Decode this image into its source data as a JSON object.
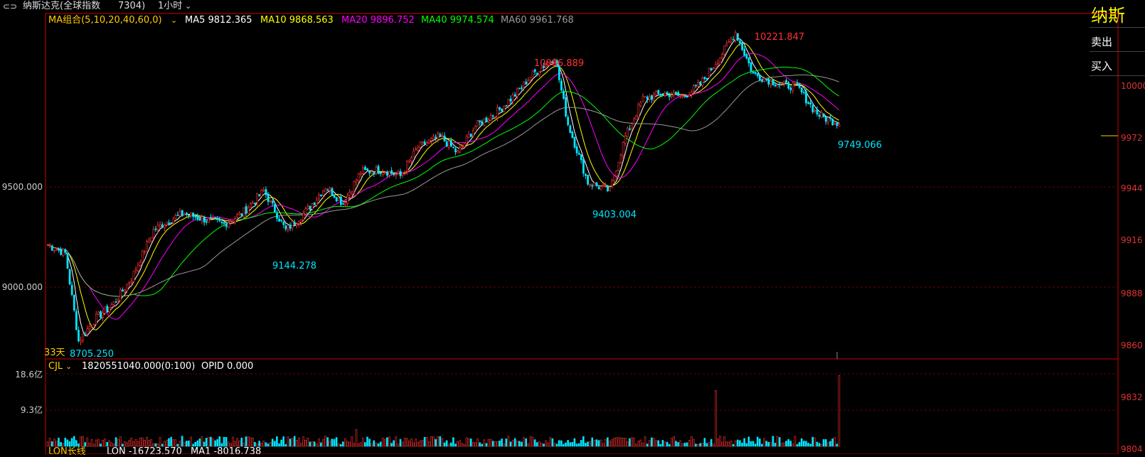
{
  "titlebar": {
    "link_icon": "link-icon",
    "name": "纳斯达克(全球指数",
    "code": "7304)",
    "period": "1小时",
    "period_arrow": "chevron-down-icon"
  },
  "ma_header": {
    "label": "MA组合(5,10,20,40,60,0)",
    "arrow": "chevron-down-icon",
    "ma5": "MA5 9812.365",
    "ma10": "MA10 9868.563",
    "ma20": "MA20 9896.752",
    "ma40": "MA40 9974.574",
    "ma60": "MA60 9961.768"
  },
  "vol_header": {
    "label": "CJL",
    "arrow": "chevron-down-icon",
    "value": "1820551040.000(0:100)",
    "opid": "OPID 0.000"
  },
  "bottom_header": {
    "label": "LON长线",
    "lon": "LON -16723.570",
    "ma1": "MA1 -8016.738"
  },
  "side_panel": {
    "title": "纳斯",
    "sell": "卖出",
    "buy": "买入"
  },
  "colors": {
    "up": "#ff3333",
    "down": "#00e5ff",
    "ma5": "#ffffff",
    "ma10": "#ffff00",
    "ma20": "#ff00ff",
    "ma40": "#00ff00",
    "ma60": "#999999",
    "frame": "#cc0000"
  },
  "chart_data": [
    {
      "type": "candlestick",
      "left_axis_ticks": [
        "9500.000",
        "9000.000"
      ],
      "right_axis_ticks": [
        "10000",
        "9972",
        "9944",
        "9916",
        "9888",
        "9860"
      ],
      "annotations": {
        "high1": "10086.889",
        "high2": "10221.847",
        "low1": "9144.278",
        "low2": "9403.004",
        "low3": "8705.250",
        "last": "9749.066",
        "span": "33天"
      },
      "price_range": [
        8650,
        10280
      ],
      "anchors_x": [
        0,
        8,
        14,
        22,
        30,
        38,
        48,
        55,
        62,
        72,
        80,
        88,
        98,
        108,
        118,
        126,
        134,
        142,
        152,
        160,
        168,
        178,
        186,
        194,
        204,
        212,
        220,
        230,
        236,
        245,
        255,
        262,
        270,
        280,
        288,
        296,
        306,
        312,
        320,
        332,
        340,
        348,
        352,
        360
      ],
      "anchors_close": [
        9180,
        9140,
        8720,
        8830,
        8900,
        9020,
        9250,
        9300,
        9330,
        9300,
        9280,
        9330,
        9440,
        9250,
        9350,
        9460,
        9380,
        9530,
        9540,
        9510,
        9650,
        9700,
        9620,
        9750,
        9820,
        9900,
        10000,
        10080,
        9760,
        9480,
        9440,
        9700,
        9880,
        9910,
        9890,
        9950,
        10100,
        10200,
        10000,
        9950,
        9940,
        9820,
        9790,
        9760
      ]
    },
    {
      "type": "bar",
      "left_axis_ticks": [
        "18.6亿",
        "9.3亿"
      ],
      "right_axis_ticks": [
        "9832",
        "9804"
      ],
      "spikes": [
        {
          "index": 140,
          "value": 4.3
        },
        {
          "index": 303,
          "value": 14.2
        },
        {
          "index": 359,
          "value": 18.0
        }
      ],
      "base_range": [
        0.5,
        2.6
      ]
    }
  ]
}
